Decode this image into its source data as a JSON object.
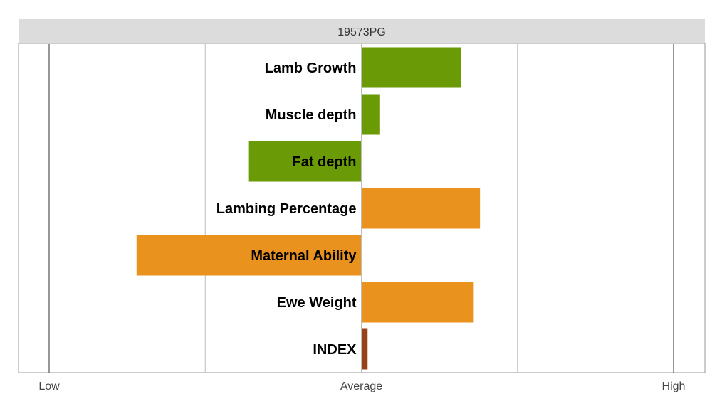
{
  "chart_data": {
    "type": "bar",
    "orientation": "horizontal",
    "title": "19573PG",
    "xlabel": "",
    "ylabel": "",
    "xlim": [
      -2,
      2
    ],
    "x_ticks": [
      {
        "value": -2,
        "label": "Low"
      },
      {
        "value": 0,
        "label": "Average"
      },
      {
        "value": 2,
        "label": "High"
      }
    ],
    "grid_x": [
      -2,
      -1,
      0,
      1,
      2
    ],
    "categories": [
      "Lamb Growth",
      "Muscle depth",
      "Fat depth",
      "Lambing Percentage",
      "Maternal Ability",
      "Ewe Weight",
      "INDEX"
    ],
    "values": [
      0.64,
      0.12,
      -0.72,
      0.76,
      -1.44,
      0.72,
      0.04
    ],
    "bar_colors": [
      "#6a9a05",
      "#6a9a05",
      "#6a9a05",
      "#ea921e",
      "#ea921e",
      "#ea921e",
      "#98421a"
    ],
    "grid": true,
    "legend": "none"
  },
  "colors": {
    "title_band": "#dcdcdc",
    "frame": "#999999",
    "gridline": "#bdbdbd",
    "outer_gridline": "#777777",
    "growth_green": "#6a9a05",
    "maternal_orange": "#ea921e",
    "index_brown": "#98421a"
  }
}
